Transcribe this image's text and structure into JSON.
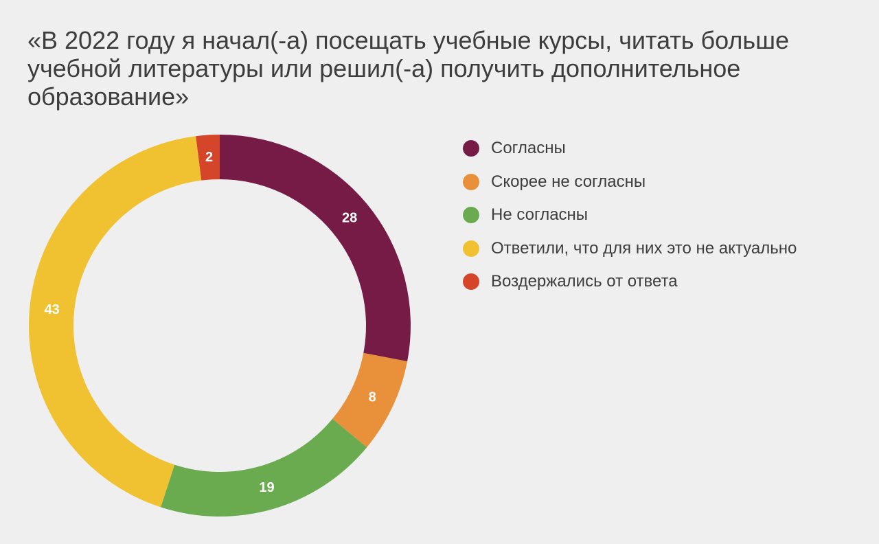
{
  "title": "«В 2022 году я начал(-а) посещать учебные курсы, читать больше учебной литературы или решил(-а) получить дополнительное образование»",
  "chart_data": {
    "type": "pie",
    "donut": true,
    "title": "«В 2022 году я начал(-а) посещать учебные курсы, читать больше учебной литературы или решил(-а) получить дополнительное образование»",
    "legend_position": "right",
    "labels": [
      "Согласны",
      "Скорее не согласны",
      "Не согласны",
      "Ответили, что для них это не актуально",
      "Воздержались от ответа"
    ],
    "values": [
      28,
      8,
      19,
      43,
      2
    ],
    "data_labels": [
      "28",
      "8",
      "19",
      "43",
      "2"
    ],
    "colors": [
      "#761b46",
      "#e8913a",
      "#6aab4f",
      "#f0c232",
      "#d4452a"
    ]
  }
}
